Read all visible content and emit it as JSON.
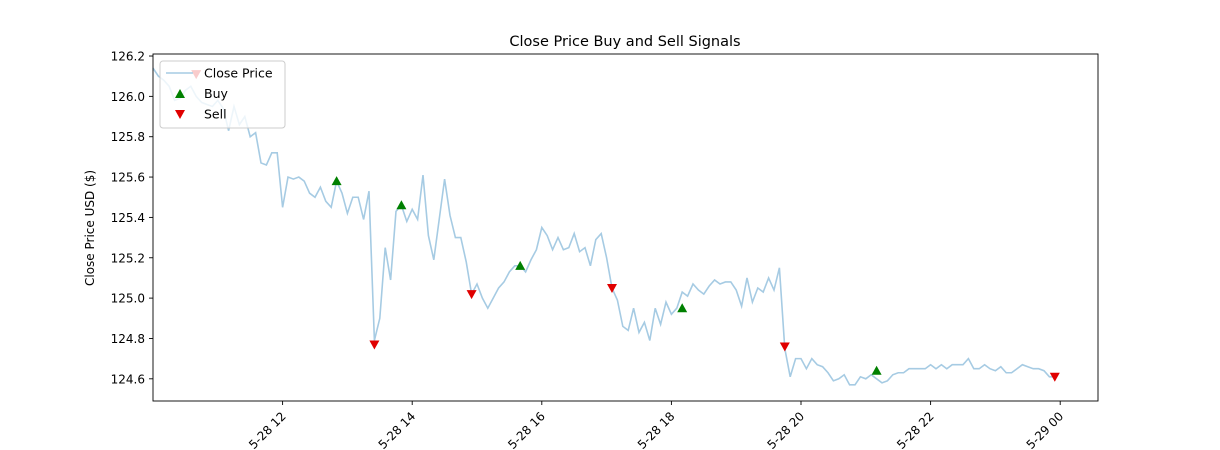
{
  "chart_data": {
    "type": "line",
    "title": "Close Price Buy and Sell Signals",
    "xlabel": "",
    "ylabel": "Close Price USD ($)",
    "ylim": [
      124.49,
      126.21
    ],
    "xlim": [
      "2021-05-28T10:00",
      "2021-05-29T00:35"
    ],
    "grid": false,
    "legend_position": "top-left",
    "y_ticks": [
      124.6,
      124.8,
      125.0,
      125.2,
      125.4,
      125.6,
      125.8,
      126.0,
      126.2
    ],
    "x_ticks": [
      {
        "t": "2021-05-28T12:00",
        "label": "5-28 12"
      },
      {
        "t": "2021-05-28T14:00",
        "label": "5-28 14"
      },
      {
        "t": "2021-05-28T16:00",
        "label": "5-28 16"
      },
      {
        "t": "2021-05-28T18:00",
        "label": "5-28 18"
      },
      {
        "t": "2021-05-28T20:00",
        "label": "5-28 20"
      },
      {
        "t": "2021-05-28T22:00",
        "label": "5-28 22"
      },
      {
        "t": "2021-05-29T00:00",
        "label": "5-29 00"
      }
    ],
    "series": [
      {
        "name": "Close Price",
        "color": "#a6cbe3",
        "points": [
          [
            "2021-05-28T10:00",
            126.14
          ],
          [
            "2021-05-28T10:05",
            126.1
          ],
          [
            "2021-05-28T10:10",
            126.08
          ],
          [
            "2021-05-28T10:15",
            126.05
          ],
          [
            "2021-05-28T10:20",
            125.98
          ],
          [
            "2021-05-28T10:25",
            125.99
          ],
          [
            "2021-05-28T10:30",
            126.03
          ],
          [
            "2021-05-28T10:35",
            126.05
          ],
          [
            "2021-05-28T10:40",
            126.0
          ],
          [
            "2021-05-28T10:45",
            125.97
          ],
          [
            "2021-05-28T10:50",
            125.96
          ],
          [
            "2021-05-28T10:55",
            125.95
          ],
          [
            "2021-05-28T11:00",
            125.98
          ],
          [
            "2021-05-28T11:05",
            125.94
          ],
          [
            "2021-05-28T11:10",
            125.83
          ],
          [
            "2021-05-28T11:15",
            125.95
          ],
          [
            "2021-05-28T11:20",
            125.86
          ],
          [
            "2021-05-28T11:25",
            125.9
          ],
          [
            "2021-05-28T11:30",
            125.8
          ],
          [
            "2021-05-28T11:35",
            125.82
          ],
          [
            "2021-05-28T11:40",
            125.67
          ],
          [
            "2021-05-28T11:45",
            125.66
          ],
          [
            "2021-05-28T11:50",
            125.72
          ],
          [
            "2021-05-28T11:55",
            125.72
          ],
          [
            "2021-05-28T12:00",
            125.45
          ],
          [
            "2021-05-28T12:05",
            125.6
          ],
          [
            "2021-05-28T12:10",
            125.59
          ],
          [
            "2021-05-28T12:15",
            125.6
          ],
          [
            "2021-05-28T12:20",
            125.58
          ],
          [
            "2021-05-28T12:25",
            125.52
          ],
          [
            "2021-05-28T12:30",
            125.5
          ],
          [
            "2021-05-28T12:35",
            125.55
          ],
          [
            "2021-05-28T12:40",
            125.48
          ],
          [
            "2021-05-28T12:45",
            125.45
          ],
          [
            "2021-05-28T12:50",
            125.58
          ],
          [
            "2021-05-28T12:55",
            125.52
          ],
          [
            "2021-05-28T13:00",
            125.42
          ],
          [
            "2021-05-28T13:05",
            125.5
          ],
          [
            "2021-05-28T13:10",
            125.5
          ],
          [
            "2021-05-28T13:15",
            125.39
          ],
          [
            "2021-05-28T13:20",
            125.53
          ],
          [
            "2021-05-28T13:25",
            124.79
          ],
          [
            "2021-05-28T13:30",
            124.9
          ],
          [
            "2021-05-28T13:35",
            125.25
          ],
          [
            "2021-05-28T13:40",
            125.09
          ],
          [
            "2021-05-28T13:45",
            125.43
          ],
          [
            "2021-05-28T13:50",
            125.46
          ],
          [
            "2021-05-28T13:55",
            125.38
          ],
          [
            "2021-05-28T14:00",
            125.44
          ],
          [
            "2021-05-28T14:05",
            125.39
          ],
          [
            "2021-05-28T14:10",
            125.61
          ],
          [
            "2021-05-28T14:15",
            125.31
          ],
          [
            "2021-05-28T14:20",
            125.19
          ],
          [
            "2021-05-28T14:25",
            125.39
          ],
          [
            "2021-05-28T14:30",
            125.59
          ],
          [
            "2021-05-28T14:35",
            125.41
          ],
          [
            "2021-05-28T14:40",
            125.3
          ],
          [
            "2021-05-28T14:45",
            125.3
          ],
          [
            "2021-05-28T14:50",
            125.18
          ],
          [
            "2021-05-28T14:55",
            125.02
          ],
          [
            "2021-05-28T15:00",
            125.07
          ],
          [
            "2021-05-28T15:05",
            125.0
          ],
          [
            "2021-05-28T15:10",
            124.95
          ],
          [
            "2021-05-28T15:15",
            125.0
          ],
          [
            "2021-05-28T15:20",
            125.05
          ],
          [
            "2021-05-28T15:25",
            125.08
          ],
          [
            "2021-05-28T15:30",
            125.13
          ],
          [
            "2021-05-28T15:35",
            125.16
          ],
          [
            "2021-05-28T15:40",
            125.16
          ],
          [
            "2021-05-28T15:45",
            125.13
          ],
          [
            "2021-05-28T15:50",
            125.19
          ],
          [
            "2021-05-28T15:55",
            125.24
          ],
          [
            "2021-05-28T16:00",
            125.35
          ],
          [
            "2021-05-28T16:05",
            125.31
          ],
          [
            "2021-05-28T16:10",
            125.24
          ],
          [
            "2021-05-28T16:15",
            125.3
          ],
          [
            "2021-05-28T16:20",
            125.24
          ],
          [
            "2021-05-28T16:25",
            125.25
          ],
          [
            "2021-05-28T16:30",
            125.32
          ],
          [
            "2021-05-28T16:35",
            125.23
          ],
          [
            "2021-05-28T16:40",
            125.25
          ],
          [
            "2021-05-28T16:45",
            125.16
          ],
          [
            "2021-05-28T16:50",
            125.29
          ],
          [
            "2021-05-28T16:55",
            125.32
          ],
          [
            "2021-05-28T17:00",
            125.2
          ],
          [
            "2021-05-28T17:05",
            125.05
          ],
          [
            "2021-05-28T17:10",
            124.99
          ],
          [
            "2021-05-28T17:15",
            124.86
          ],
          [
            "2021-05-28T17:20",
            124.84
          ],
          [
            "2021-05-28T17:25",
            124.95
          ],
          [
            "2021-05-28T17:30",
            124.83
          ],
          [
            "2021-05-28T17:35",
            124.88
          ],
          [
            "2021-05-28T17:40",
            124.79
          ],
          [
            "2021-05-28T17:45",
            124.95
          ],
          [
            "2021-05-28T17:50",
            124.87
          ],
          [
            "2021-05-28T17:55",
            124.98
          ],
          [
            "2021-05-28T18:00",
            124.92
          ],
          [
            "2021-05-28T18:05",
            124.95
          ],
          [
            "2021-05-28T18:10",
            125.03
          ],
          [
            "2021-05-28T18:15",
            125.01
          ],
          [
            "2021-05-28T18:20",
            125.07
          ],
          [
            "2021-05-28T18:25",
            125.04
          ],
          [
            "2021-05-28T18:30",
            125.02
          ],
          [
            "2021-05-28T18:35",
            125.06
          ],
          [
            "2021-05-28T18:40",
            125.09
          ],
          [
            "2021-05-28T18:45",
            125.07
          ],
          [
            "2021-05-28T18:50",
            125.08
          ],
          [
            "2021-05-28T18:55",
            125.08
          ],
          [
            "2021-05-28T19:00",
            125.04
          ],
          [
            "2021-05-28T19:05",
            124.96
          ],
          [
            "2021-05-28T19:10",
            125.1
          ],
          [
            "2021-05-28T19:15",
            124.98
          ],
          [
            "2021-05-28T19:20",
            125.05
          ],
          [
            "2021-05-28T19:25",
            125.03
          ],
          [
            "2021-05-28T19:30",
            125.1
          ],
          [
            "2021-05-28T19:35",
            125.04
          ],
          [
            "2021-05-28T19:40",
            125.15
          ],
          [
            "2021-05-28T19:45",
            124.75
          ],
          [
            "2021-05-28T19:50",
            124.61
          ],
          [
            "2021-05-28T19:55",
            124.7
          ],
          [
            "2021-05-28T20:00",
            124.7
          ],
          [
            "2021-05-28T20:05",
            124.65
          ],
          [
            "2021-05-28T20:10",
            124.7
          ],
          [
            "2021-05-28T20:15",
            124.67
          ],
          [
            "2021-05-28T20:20",
            124.66
          ],
          [
            "2021-05-28T20:25",
            124.63
          ],
          [
            "2021-05-28T20:30",
            124.59
          ],
          [
            "2021-05-28T20:35",
            124.6
          ],
          [
            "2021-05-28T20:40",
            124.62
          ],
          [
            "2021-05-28T20:45",
            124.57
          ],
          [
            "2021-05-28T20:50",
            124.57
          ],
          [
            "2021-05-28T20:55",
            124.61
          ],
          [
            "2021-05-28T21:00",
            124.6
          ],
          [
            "2021-05-28T21:05",
            124.62
          ],
          [
            "2021-05-28T21:10",
            124.6
          ],
          [
            "2021-05-28T21:15",
            124.58
          ],
          [
            "2021-05-28T21:20",
            124.59
          ],
          [
            "2021-05-28T21:25",
            124.62
          ],
          [
            "2021-05-28T21:30",
            124.63
          ],
          [
            "2021-05-28T21:35",
            124.63
          ],
          [
            "2021-05-28T21:40",
            124.65
          ],
          [
            "2021-05-28T21:45",
            124.65
          ],
          [
            "2021-05-28T21:50",
            124.65
          ],
          [
            "2021-05-28T21:55",
            124.65
          ],
          [
            "2021-05-28T22:00",
            124.67
          ],
          [
            "2021-05-28T22:05",
            124.65
          ],
          [
            "2021-05-28T22:10",
            124.67
          ],
          [
            "2021-05-28T22:15",
            124.65
          ],
          [
            "2021-05-28T22:20",
            124.67
          ],
          [
            "2021-05-28T22:25",
            124.67
          ],
          [
            "2021-05-28T22:30",
            124.67
          ],
          [
            "2021-05-28T22:35",
            124.7
          ],
          [
            "2021-05-28T22:40",
            124.65
          ],
          [
            "2021-05-28T22:45",
            124.65
          ],
          [
            "2021-05-28T22:50",
            124.67
          ],
          [
            "2021-05-28T22:55",
            124.65
          ],
          [
            "2021-05-28T23:00",
            124.64
          ],
          [
            "2021-05-28T23:05",
            124.66
          ],
          [
            "2021-05-28T23:10",
            124.63
          ],
          [
            "2021-05-28T23:15",
            124.63
          ],
          [
            "2021-05-28T23:20",
            124.65
          ],
          [
            "2021-05-28T23:25",
            124.67
          ],
          [
            "2021-05-28T23:30",
            124.66
          ],
          [
            "2021-05-28T23:35",
            124.65
          ],
          [
            "2021-05-28T23:40",
            124.65
          ],
          [
            "2021-05-28T23:45",
            124.64
          ],
          [
            "2021-05-28T23:50",
            124.61
          ],
          [
            "2021-05-28T23:55",
            124.61
          ]
        ]
      },
      {
        "name": "Buy",
        "marker": "triangle-up",
        "color": "#008000",
        "points": [
          [
            "2021-05-28T12:50",
            125.58
          ],
          [
            "2021-05-28T13:50",
            125.46
          ],
          [
            "2021-05-28T15:40",
            125.16
          ],
          [
            "2021-05-28T18:10",
            124.95
          ],
          [
            "2021-05-28T21:10",
            124.64
          ]
        ]
      },
      {
        "name": "Sell",
        "marker": "triangle-down",
        "color": "#e00000",
        "points": [
          [
            "2021-05-28T10:40",
            126.11
          ],
          [
            "2021-05-28T13:25",
            124.77
          ],
          [
            "2021-05-28T14:55",
            125.02
          ],
          [
            "2021-05-28T17:05",
            125.05
          ],
          [
            "2021-05-28T19:45",
            124.76
          ],
          [
            "2021-05-28T23:55",
            124.61
          ]
        ]
      }
    ]
  }
}
